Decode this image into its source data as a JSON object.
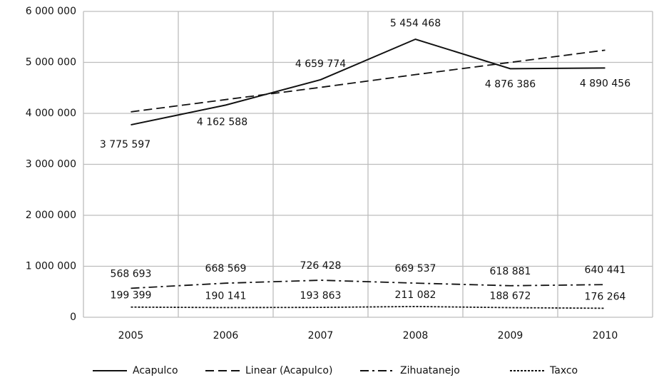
{
  "chart_data": {
    "type": "line",
    "categories": [
      "2005",
      "2006",
      "2007",
      "2008",
      "2009",
      "2010"
    ],
    "ylim": [
      0,
      6000000
    ],
    "yticks": [
      0,
      {
        "value": 1000000,
        "label": "1 000 000"
      },
      {
        "value": 2000000,
        "label": "2 000 000"
      },
      {
        "value": 3000000,
        "label": "3 000 000"
      },
      {
        "value": 4000000,
        "label": "4 000 000"
      },
      {
        "value": 5000000,
        "label": "5 000 000"
      },
      {
        "value": 6000000,
        "label": "6 000 000"
      }
    ],
    "grid": true,
    "legend": "bottom",
    "series": [
      {
        "name": "Acapulco",
        "color": "#111111",
        "dash": "solid",
        "values": [
          3775597,
          4162588,
          4659774,
          5454468,
          4876386,
          4890456
        ],
        "value_labels": [
          "3 775 597",
          "4 162 588",
          "4 659 774",
          "5 454 468",
          "4 876 386",
          "4 890 456"
        ]
      },
      {
        "name": "Linear (Acapulco)",
        "color": "#111111",
        "dash": "dashed",
        "values": [
          4030000,
          4270000,
          4510000,
          4760000,
          5000000,
          5240000
        ]
      },
      {
        "name": "Zihuatanejo",
        "color": "#111111",
        "dash": "dashdot",
        "values": [
          568693,
          668569,
          726428,
          669537,
          618881,
          640441
        ],
        "value_labels": [
          "568 693",
          "668 569",
          "726 428",
          "669 537",
          "618 881",
          "640 441"
        ]
      },
      {
        "name": "Taxco",
        "color": "#111111",
        "dash": "dotted",
        "values": [
          199399,
          190141,
          193863,
          211082,
          188672,
          176264
        ],
        "value_labels": [
          "199 399",
          "190 141",
          "193 863",
          "211 082",
          "188 672",
          "176 264"
        ]
      }
    ]
  }
}
